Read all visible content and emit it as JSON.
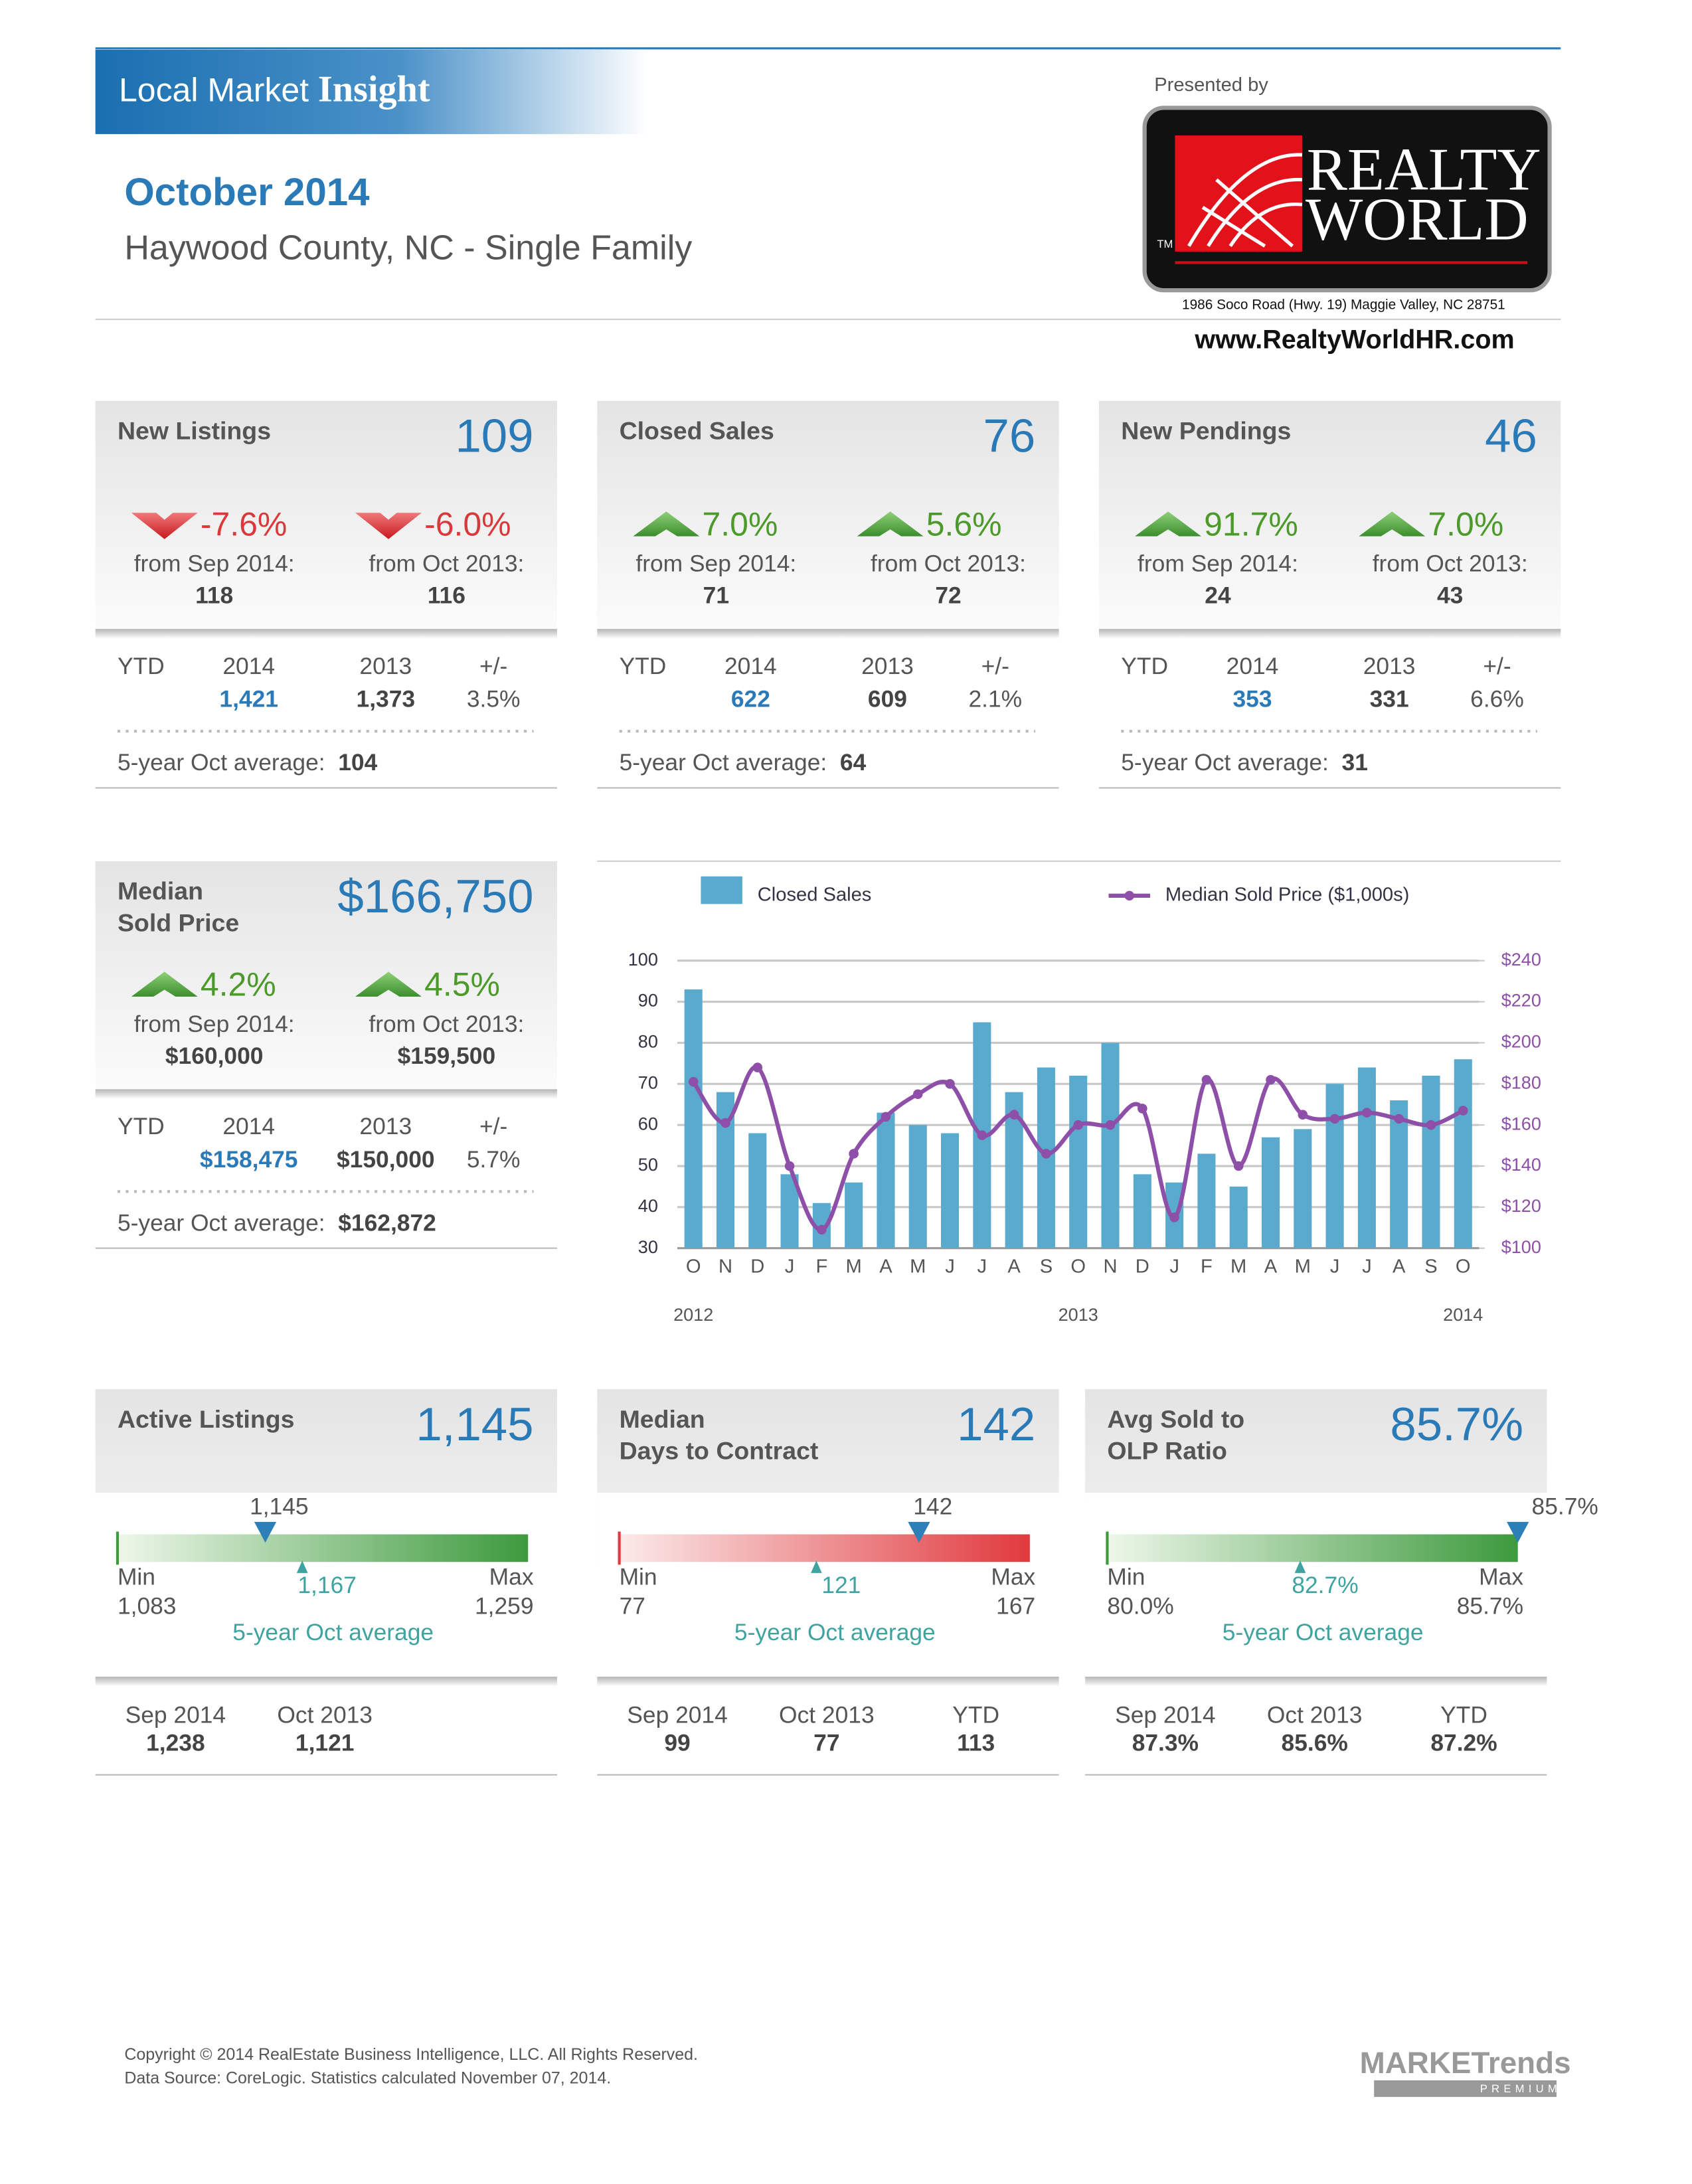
{
  "header": {
    "brand": "Local Market",
    "brand_bold": "Insight",
    "period": "October 2014",
    "area": "Haywood County, NC - Single Family",
    "presented_by": "Presented by",
    "logo_line1": "REALTY",
    "logo_line2": "WORLD",
    "logo_tm": "TM",
    "address": "1986 Soco Road (Hwy. 19) Maggie Valley, NC  28751",
    "website": "www.RealtyWorldHR.com"
  },
  "summary_cards": [
    {
      "title_lines": [
        "New Listings"
      ],
      "value": "109",
      "changes": [
        {
          "value": "-7.6%",
          "direction": "down",
          "label": "from Sep 2014:",
          "base": "118"
        },
        {
          "value": "-6.0%",
          "direction": "down",
          "label": "from Oct 2013:",
          "base": "116"
        }
      ],
      "ytd": {
        "label": "YTD",
        "headers": [
          "2014",
          "2013",
          "+/-"
        ],
        "values": [
          "1,421",
          "1,373",
          "3.5%"
        ]
      },
      "average": {
        "label": "5-year Oct average:",
        "value": "104"
      }
    },
    {
      "title_lines": [
        "Closed Sales"
      ],
      "value": "76",
      "changes": [
        {
          "value": "7.0%",
          "direction": "up",
          "label": "from Sep 2014:",
          "base": "71"
        },
        {
          "value": "5.6%",
          "direction": "up",
          "label": "from Oct 2013:",
          "base": "72"
        }
      ],
      "ytd": {
        "label": "YTD",
        "headers": [
          "2014",
          "2013",
          "+/-"
        ],
        "values": [
          "622",
          "609",
          "2.1%"
        ]
      },
      "average": {
        "label": "5-year Oct average:",
        "value": "64"
      }
    },
    {
      "title_lines": [
        "New Pendings"
      ],
      "value": "46",
      "changes": [
        {
          "value": "91.7%",
          "direction": "up",
          "label": "from Sep 2014:",
          "base": "24"
        },
        {
          "value": "7.0%",
          "direction": "up",
          "label": "from Oct 2013:",
          "base": "43"
        }
      ],
      "ytd": {
        "label": "YTD",
        "headers": [
          "2014",
          "2013",
          "+/-"
        ],
        "values": [
          "353",
          "331",
          "6.6%"
        ]
      },
      "average": {
        "label": "5-year Oct average:",
        "value": "31"
      }
    }
  ],
  "price_card": {
    "title_lines": [
      "Median",
      "Sold Price"
    ],
    "value": "$166,750",
    "changes": [
      {
        "value": "4.2%",
        "direction": "up",
        "label": "from Sep 2014:",
        "base": "$160,000"
      },
      {
        "value": "4.5%",
        "direction": "up",
        "label": "from Oct 2013:",
        "base": "$159,500"
      }
    ],
    "ytd": {
      "label": "YTD",
      "headers": [
        "2014",
        "2013",
        "+/-"
      ],
      "values": [
        "$158,475",
        "$150,000",
        "5.7%"
      ]
    },
    "average": {
      "label": "5-year Oct average:",
      "value": "$162,872"
    }
  },
  "chart_data": {
    "type": "bar_line",
    "categories": [
      "O",
      "N",
      "D",
      "J",
      "F",
      "M",
      "A",
      "M",
      "J",
      "J",
      "A",
      "S",
      "O",
      "N",
      "D",
      "J",
      "F",
      "M",
      "A",
      "M",
      "J",
      "J",
      "A",
      "S",
      "O"
    ],
    "years": [
      "2012",
      "2013",
      "2014"
    ],
    "series": [
      {
        "name": "Closed Sales",
        "type": "bar",
        "color": "#5aaacd",
        "values": [
          93,
          68,
          58,
          48,
          41,
          46,
          63,
          60,
          58,
          85,
          68,
          74,
          72,
          80,
          48,
          46,
          53,
          45,
          57,
          59,
          70,
          74,
          66,
          72,
          76
        ]
      },
      {
        "name": "Median Sold Price ($1,000s)",
        "type": "line",
        "axis": "y2",
        "color": "#8e4fa8",
        "values": [
          181,
          161,
          188,
          140,
          109,
          146,
          164,
          175,
          180,
          155,
          165,
          146,
          160,
          160,
          168,
          115,
          182,
          140,
          182,
          165,
          163,
          166,
          163,
          160,
          167
        ]
      }
    ],
    "ylim": [
      30,
      100
    ],
    "yticks": [
      30,
      40,
      50,
      60,
      70,
      80,
      90,
      100
    ],
    "y2lim": [
      100,
      240
    ],
    "y2ticks": [
      {
        "value": 100,
        "label": "$100"
      },
      {
        "value": 120,
        "label": "$120"
      },
      {
        "value": 140,
        "label": "$140"
      },
      {
        "value": 160,
        "label": "$160"
      },
      {
        "value": 180,
        "label": "$180"
      },
      {
        "value": 200,
        "label": "$200"
      },
      {
        "value": 220,
        "label": "$220"
      },
      {
        "value": 240,
        "label": "$240"
      }
    ],
    "grid": true
  },
  "gauge_cards": [
    {
      "title_lines": [
        "Active Listings"
      ],
      "value": "1,145",
      "marker": "1,145",
      "min_label": "Min",
      "min": "1,083",
      "max_label": "Max",
      "max": "1,259",
      "average": "1,167",
      "average_label": "5-year Oct average",
      "color": "#3d9a3d",
      "footer": [
        {
          "label": "Sep 2014",
          "value": "1,238"
        },
        {
          "label": "Oct 2013",
          "value": "1,121"
        }
      ]
    },
    {
      "title_lines": [
        "Median",
        "Days to Contract"
      ],
      "value": "142",
      "marker": "142",
      "min_label": "Min",
      "min": "77",
      "max_label": "Max",
      "max": "167",
      "average": "121",
      "average_label": "5-year Oct average",
      "color": "#e03a3e",
      "footer": [
        {
          "label": "Sep 2014",
          "value": "99"
        },
        {
          "label": "Oct 2013",
          "value": "77"
        },
        {
          "label": "YTD",
          "value": "113"
        }
      ]
    },
    {
      "title_lines": [
        "Avg Sold to",
        "OLP Ratio"
      ],
      "value": "85.7%",
      "marker": "85.7%",
      "min_label": "Min",
      "min": "80.0%",
      "max_label": "Max",
      "max": "85.7%",
      "average": "82.7%",
      "average_label": "5-year Oct average",
      "color": "#3d9a3d",
      "footer": [
        {
          "label": "Sep 2014",
          "value": "87.3%"
        },
        {
          "label": "Oct 2013",
          "value": "85.6%"
        },
        {
          "label": "YTD",
          "value": "87.2%"
        }
      ]
    }
  ],
  "footer": {
    "copyright": "Copyright © 2014 RealEstate Business Intelligence, LLC. All Rights Reserved.",
    "source": "Data Source: CoreLogic. Statistics calculated November 07, 2014.",
    "brand": "MARKETrends",
    "tier": "PREMIUM"
  }
}
